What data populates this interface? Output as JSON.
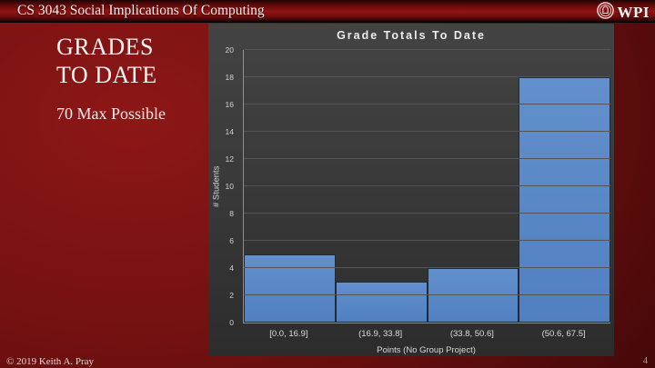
{
  "header": {
    "course_title": "CS 3043 Social Implications Of Computing",
    "logo_text": "WPI"
  },
  "slide": {
    "title_line1": "GRADES",
    "title_line2": "TO DATE",
    "subtitle": "70 Max Possible"
  },
  "footer": {
    "copyright": "© 2019 Keith A. Pray",
    "page_number": "4"
  },
  "chart_data": {
    "type": "bar",
    "title": "Grade Totals To Date",
    "categories": [
      "[0.0, 16.9]",
      "(16.9, 33.8]",
      "(33.8, 50.6]",
      "(50.6, 67.5]"
    ],
    "values": [
      5,
      3,
      4,
      18
    ],
    "xlabel": "Points (No Group Project)",
    "ylabel": "# Students",
    "ylim": [
      0,
      20
    ],
    "ytick_step": 2,
    "grid": true,
    "legend": "none",
    "bar_color_top": "#6390cc",
    "bar_color_bottom": "#517fc0",
    "bar_border_color": "#1d2b3a"
  },
  "colors": {
    "slide_background_red": "#731111",
    "chart_panel_gray": "#3a3a3a",
    "gridline_gray": "#545454",
    "axis_gray": "#8f8f8f"
  }
}
